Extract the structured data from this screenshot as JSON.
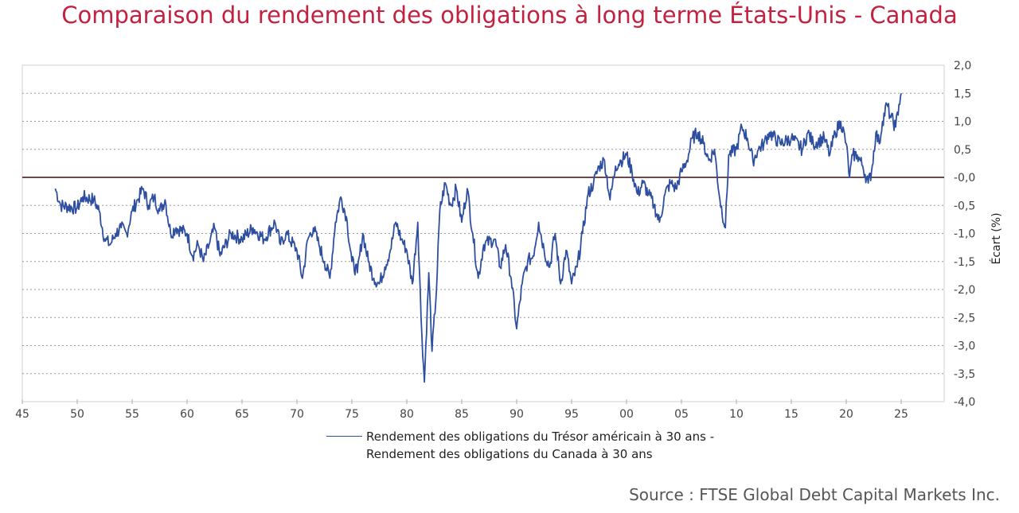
{
  "chart_data": {
    "type": "line",
    "title": "Comparaison du rendement des obligations à long terme États-Unis - Canada",
    "xlabel": "",
    "ylabel": "Écart (%)",
    "xlim": [
      1945,
      2029
    ],
    "ylim": [
      -4.0,
      2.0
    ],
    "x_ticks": [
      {
        "v": 1945,
        "l": "45"
      },
      {
        "v": 1950,
        "l": "50"
      },
      {
        "v": 1955,
        "l": "55"
      },
      {
        "v": 1960,
        "l": "60"
      },
      {
        "v": 1965,
        "l": "65"
      },
      {
        "v": 1970,
        "l": "70"
      },
      {
        "v": 1975,
        "l": "75"
      },
      {
        "v": 1980,
        "l": "80"
      },
      {
        "v": 1985,
        "l": "85"
      },
      {
        "v": 1990,
        "l": "90"
      },
      {
        "v": 1995,
        "l": "95"
      },
      {
        "v": 2000,
        "l": "00"
      },
      {
        "v": 2005,
        "l": "05"
      },
      {
        "v": 2010,
        "l": "10"
      },
      {
        "v": 2015,
        "l": "15"
      },
      {
        "v": 2020,
        "l": "20"
      },
      {
        "v": 2025,
        "l": "25"
      }
    ],
    "y_ticks": [
      {
        "v": 2.0,
        "l": "2,0"
      },
      {
        "v": 1.5,
        "l": "1,5"
      },
      {
        "v": 1.0,
        "l": "1,0"
      },
      {
        "v": 0.5,
        "l": "0,5"
      },
      {
        "v": 0.0,
        "l": "-0,0"
      },
      {
        "v": -0.5,
        "l": "-0,5"
      },
      {
        "v": -1.0,
        "l": "-1,0"
      },
      {
        "v": -1.5,
        "l": "-1,5"
      },
      {
        "v": -2.0,
        "l": "-2,0"
      },
      {
        "v": -2.5,
        "l": "-2,5"
      },
      {
        "v": -3.0,
        "l": "-3,0"
      },
      {
        "v": -3.5,
        "l": "-3,5"
      },
      {
        "v": -4.0,
        "l": "-4,0"
      }
    ],
    "grid": true,
    "reference_line": 0,
    "legend_placement": "bottom",
    "series": [
      {
        "name": "Rendement des obligations du Trésor américain à 30 ans - Rendement des obligations du Canada à 30 ans",
        "color": "#2e4fa0",
        "x": [
          1948,
          1948.5,
          1950,
          1950.5,
          1951.5,
          1952,
          1952.5,
          1953,
          1953.5,
          1954,
          1954.5,
          1955,
          1955.5,
          1956,
          1956.5,
          1957,
          1957.5,
          1958,
          1958.5,
          1959,
          1960,
          1960.5,
          1961,
          1961.5,
          1962,
          1962.5,
          1963,
          1964,
          1965,
          1966,
          1967,
          1968,
          1968.5,
          1969,
          1970,
          1970.5,
          1971,
          1971.5,
          1972,
          1972.5,
          1973,
          1973.5,
          1974,
          1974.5,
          1975,
          1975.5,
          1976,
          1976.5,
          1977,
          1977.5,
          1978,
          1978.5,
          1979,
          1979.5,
          1980,
          1980.5,
          1981,
          1981.3,
          1981.6,
          1982,
          1982.3,
          1982.7,
          1983,
          1983.5,
          1984,
          1984.5,
          1985,
          1985.5,
          1986,
          1986.5,
          1987,
          1988,
          1988.5,
          1989,
          1989.5,
          1990,
          1990.5,
          1991,
          1991.5,
          1992,
          1992.5,
          1993,
          1993.5,
          1994,
          1994.5,
          1995,
          1995.5,
          1996,
          1996.5,
          1997,
          1997.5,
          1998,
          1998.5,
          1999,
          1999.5,
          2000,
          2000.5,
          2001,
          2001.5,
          2002,
          2002.5,
          2003,
          2003.5,
          2004,
          2004.5,
          2005,
          2005.5,
          2006,
          2006.5,
          2007,
          2007.5,
          2008,
          2008.5,
          2009,
          2009.3,
          2010,
          2010.5,
          2011,
          2011.5,
          2012,
          2012.5,
          2013,
          2014,
          2015,
          2016,
          2016.5,
          2017,
          2018,
          2018.5,
          2019,
          2019.5,
          2020,
          2020.3,
          2020.6,
          2021,
          2021.5,
          2022,
          2022.3,
          2022.7,
          2023,
          2023.3,
          2023.7,
          2024,
          2024.5,
          2024.8,
          2025
        ],
        "values": [
          -0.2,
          -0.5,
          -0.55,
          -0.35,
          -0.4,
          -0.6,
          -1.1,
          -1.2,
          -1.0,
          -0.9,
          -1.0,
          -0.6,
          -0.4,
          -0.2,
          -0.5,
          -0.35,
          -0.6,
          -0.4,
          -1.0,
          -0.9,
          -1.0,
          -1.4,
          -1.2,
          -1.5,
          -1.2,
          -0.9,
          -1.4,
          -1.0,
          -1.1,
          -0.9,
          -1.1,
          -0.8,
          -1.2,
          -1.0,
          -1.3,
          -1.8,
          -1.1,
          -0.9,
          -1.2,
          -1.5,
          -1.8,
          -0.8,
          -0.35,
          -0.7,
          -1.5,
          -1.7,
          -1.0,
          -1.5,
          -1.8,
          -1.9,
          -1.6,
          -1.3,
          -0.8,
          -1.1,
          -1.3,
          -1.9,
          -0.8,
          -2.5,
          -3.65,
          -1.7,
          -3.1,
          -2.0,
          -0.6,
          -0.1,
          -0.5,
          -0.2,
          -0.8,
          -0.2,
          -1.0,
          -1.8,
          -1.2,
          -1.1,
          -1.6,
          -1.2,
          -1.8,
          -2.7,
          -1.9,
          -1.5,
          -1.4,
          -0.8,
          -1.3,
          -1.6,
          -1.0,
          -1.9,
          -1.3,
          -1.9,
          -1.6,
          -1.0,
          -0.3,
          -0.1,
          0.2,
          0.3,
          -0.4,
          0.2,
          0.3,
          0.4,
          0.1,
          -0.3,
          -0.1,
          -0.3,
          -0.5,
          -0.8,
          -0.3,
          -0.1,
          -0.2,
          0.1,
          0.3,
          0.7,
          0.8,
          0.6,
          0.3,
          0.5,
          -0.4,
          -0.9,
          0.4,
          0.5,
          0.9,
          0.7,
          0.3,
          0.5,
          0.6,
          0.8,
          0.6,
          0.7,
          0.5,
          0.8,
          0.6,
          0.7,
          0.4,
          0.8,
          1.0,
          0.6,
          0.0,
          0.4,
          0.4,
          0.2,
          -0.1,
          0.1,
          0.8,
          0.6,
          1.0,
          1.3,
          1.1,
          0.9,
          1.3,
          1.5
        ]
      }
    ]
  },
  "legend": {
    "line1": "Rendement des obligations du Trésor américain à 30 ans -",
    "line2": "Rendement des obligations du Canada à 30 ans"
  },
  "source": "Source : FTSE Global Debt Capital Markets Inc."
}
